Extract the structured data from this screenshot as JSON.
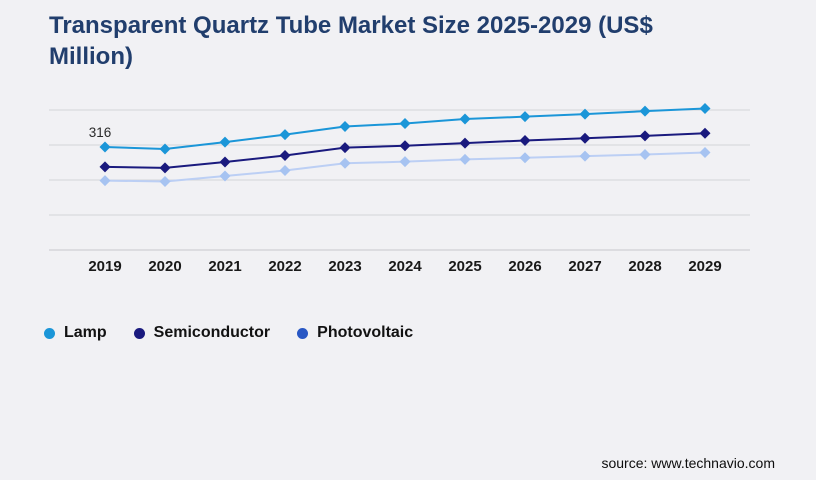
{
  "page": {
    "background": "#f1f1f4"
  },
  "header": {
    "title": "Transparent Quartz Tube Market Size 2025-2029 (US$ Million)",
    "title_color": "#213e6d"
  },
  "footer": {
    "source": "source: www.technavio.com"
  },
  "colors": {
    "gridline": "#d4d5d9",
    "axis_line": "#c7c8cd",
    "year_label": "#191919",
    "annotation_label": "#2a2a2a"
  },
  "chart_data": {
    "type": "line",
    "title": "Transparent Quartz Tube Market Size 2025-2029 (US$ Million)",
    "categories": [
      "2019",
      "2020",
      "2021",
      "2022",
      "2023",
      "2024",
      "2025",
      "2026",
      "2027",
      "2028",
      "2029"
    ],
    "series": [
      {
        "name": "Lamp",
        "color": "#1b96d8",
        "values": [
          316,
          310,
          331,
          354,
          379,
          388,
          402,
          409,
          417,
          426,
          434
        ]
      },
      {
        "name": "Semiconductor",
        "color": "#1a1a7e",
        "values": [
          255,
          252,
          270,
          290,
          314,
          320,
          328,
          336,
          343,
          350,
          358
        ]
      },
      {
        "name": "Photovoltaic",
        "color": "#bccff4",
        "marker_color": "#a6c3f1",
        "legend_color": "#2857c4",
        "values": [
          213,
          210,
          227,
          244,
          266,
          271,
          278,
          283,
          288,
          293,
          299
        ]
      }
    ],
    "annotations": [
      {
        "series": "Lamp",
        "category": "2019",
        "text": "316"
      }
    ],
    "xlabel": "",
    "ylabel": "",
    "ylim": [
      0,
      430
    ],
    "grid": true,
    "y_axis_labels_visible": false,
    "legend_position": "bottom-left",
    "marker_shape": "diamond"
  }
}
